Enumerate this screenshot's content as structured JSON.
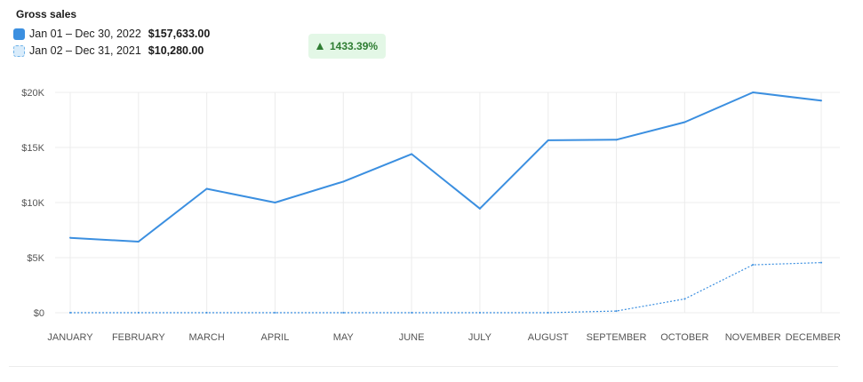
{
  "header": {
    "title": "Gross sales",
    "badge_text": "1433.39%",
    "badge_icon": "triangle-up-icon"
  },
  "legend": [
    {
      "range": "Jan 01 – Dec 30, 2022",
      "total": "$157,633.00",
      "style": "solid"
    },
    {
      "range": "Jan 02 – Dec 31, 2021",
      "total": "$10,280.00",
      "style": "dotted"
    }
  ],
  "colors": {
    "series": "#3b8fe0",
    "badge_bg": "#e3f7e6",
    "badge_text": "#2e7d32",
    "grid": "#ececec"
  },
  "chart_data": {
    "type": "line",
    "categories": [
      "JANUARY",
      "FEBRUARY",
      "MARCH",
      "APRIL",
      "MAY",
      "JUNE",
      "JULY",
      "AUGUST",
      "SEPTEMBER",
      "OCTOBER",
      "NOVEMBER",
      "DECEMBER"
    ],
    "ylim": [
      0,
      20000
    ],
    "yticks": [
      0,
      5000,
      10000,
      15000,
      20000
    ],
    "ytick_labels": [
      "$0",
      "$5K",
      "$10K",
      "$15K",
      "$20K"
    ],
    "grid": true,
    "series": [
      {
        "values": [
          6800,
          6450,
          11250,
          10000,
          11900,
          14400,
          9450,
          15650,
          15700,
          17300,
          20000,
          19250
        ],
        "style": "solid"
      },
      {
        "values": [
          0,
          0,
          0,
          0,
          0,
          0,
          0,
          0,
          150,
          1250,
          4350,
          4550
        ],
        "style": "dotted"
      }
    ]
  }
}
